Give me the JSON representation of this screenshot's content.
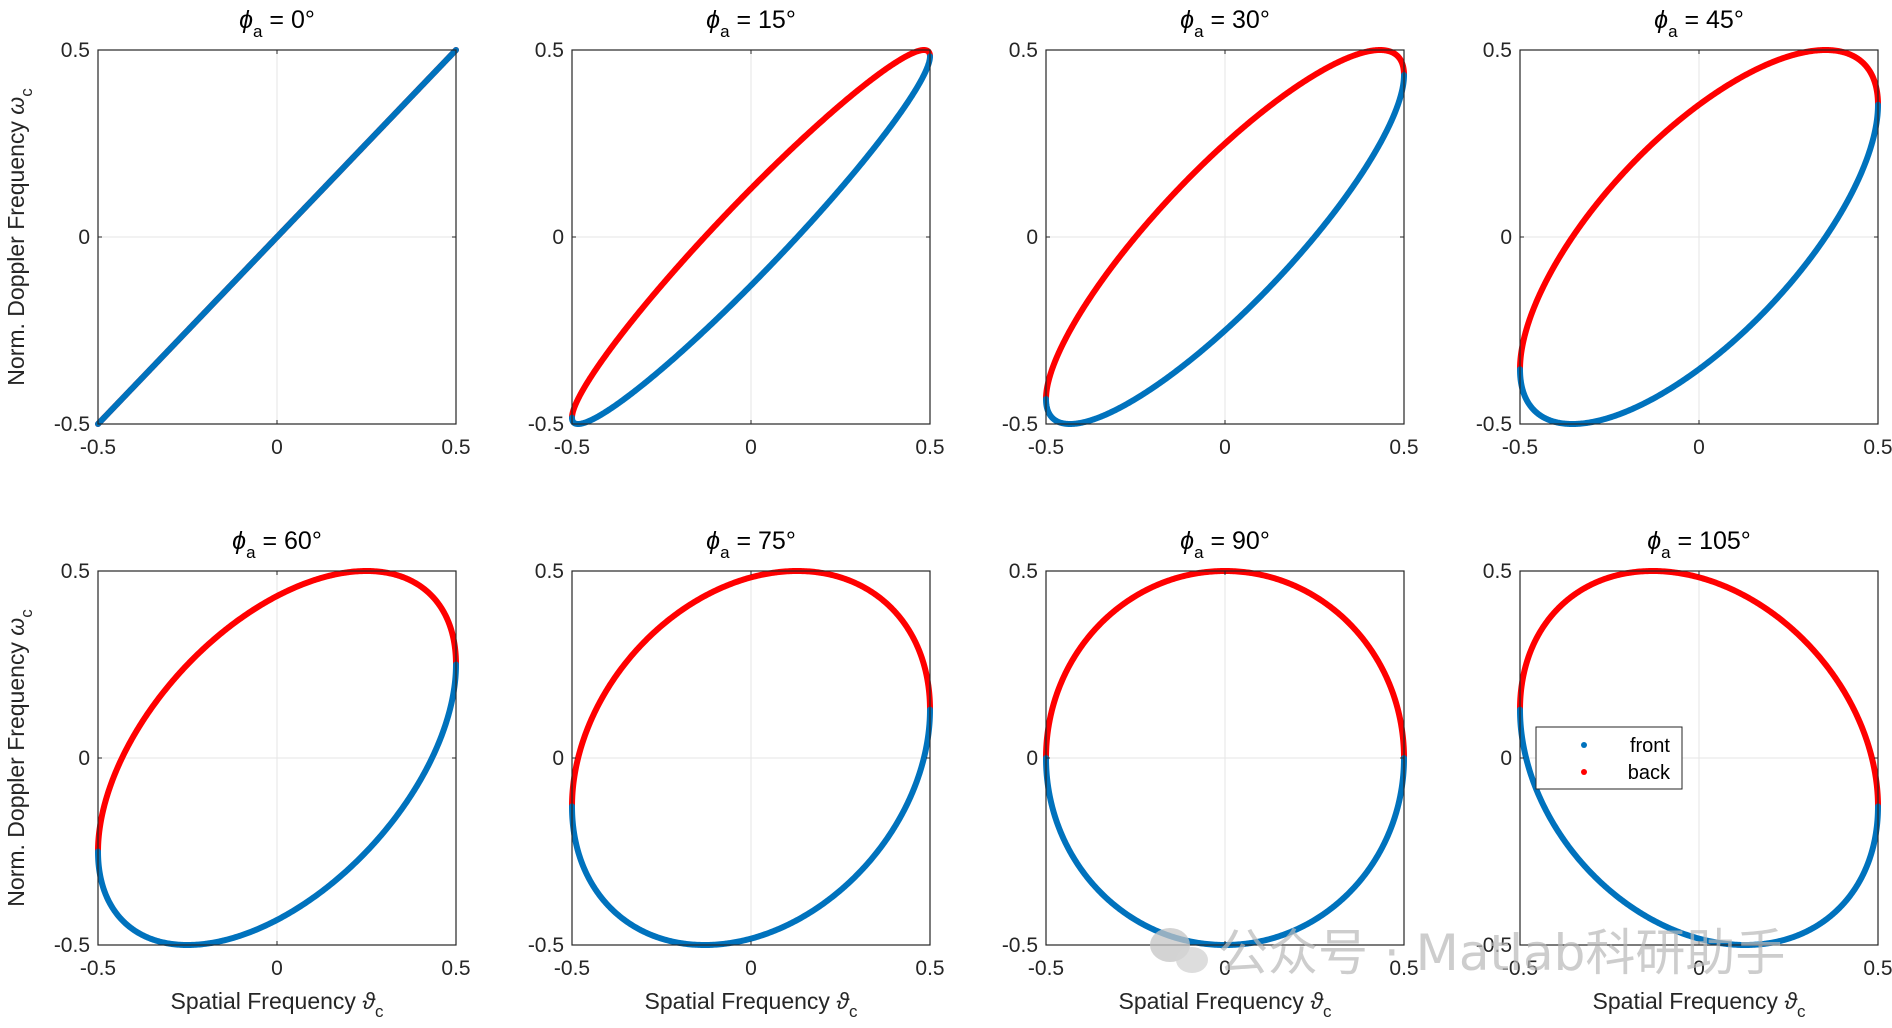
{
  "figure": {
    "xlabel_main": "Spatial Frequency ",
    "xlabel_symbol": "ϑ",
    "xlabel_sub": "c",
    "ylabel_main": "Norm. Doppler Frequency ",
    "ylabel_symbol": "ω",
    "ylabel_sub": "c",
    "title_symbol": "ϕ",
    "title_sub": "a",
    "watermark": "公众号 · Matlab科研助手"
  },
  "chart_data": {
    "type": "scatter",
    "description_of_curves": "Clutter ridge: x = cos(theta), y = cos(theta + phi_a) scaled by 0.5; front half (theta in [0,pi]) blue, back half (theta in [pi,2pi]) red",
    "xlim": [
      -0.5,
      0.5
    ],
    "ylim": [
      -0.5,
      0.5
    ],
    "xticks": [
      "-0.5",
      "0",
      "0.5"
    ],
    "yticks": [
      "-0.5",
      "0",
      "0.5"
    ],
    "grid": true,
    "legend": {
      "entries": [
        "front",
        "back"
      ],
      "placement": "inside-left of last panel"
    },
    "series_colors": {
      "front": "#0072BD",
      "back": "#FF0000"
    },
    "panels": [
      {
        "phi_a_deg": 0,
        "title_value": " = 0°"
      },
      {
        "phi_a_deg": 15,
        "title_value": " = 15°"
      },
      {
        "phi_a_deg": 30,
        "title_value": " = 30°"
      },
      {
        "phi_a_deg": 45,
        "title_value": " = 45°"
      },
      {
        "phi_a_deg": 60,
        "title_value": " = 60°"
      },
      {
        "phi_a_deg": 75,
        "title_value": " = 75°"
      },
      {
        "phi_a_deg": 90,
        "title_value": " = 90°"
      },
      {
        "phi_a_deg": 105,
        "title_value": " = 105°"
      }
    ]
  }
}
